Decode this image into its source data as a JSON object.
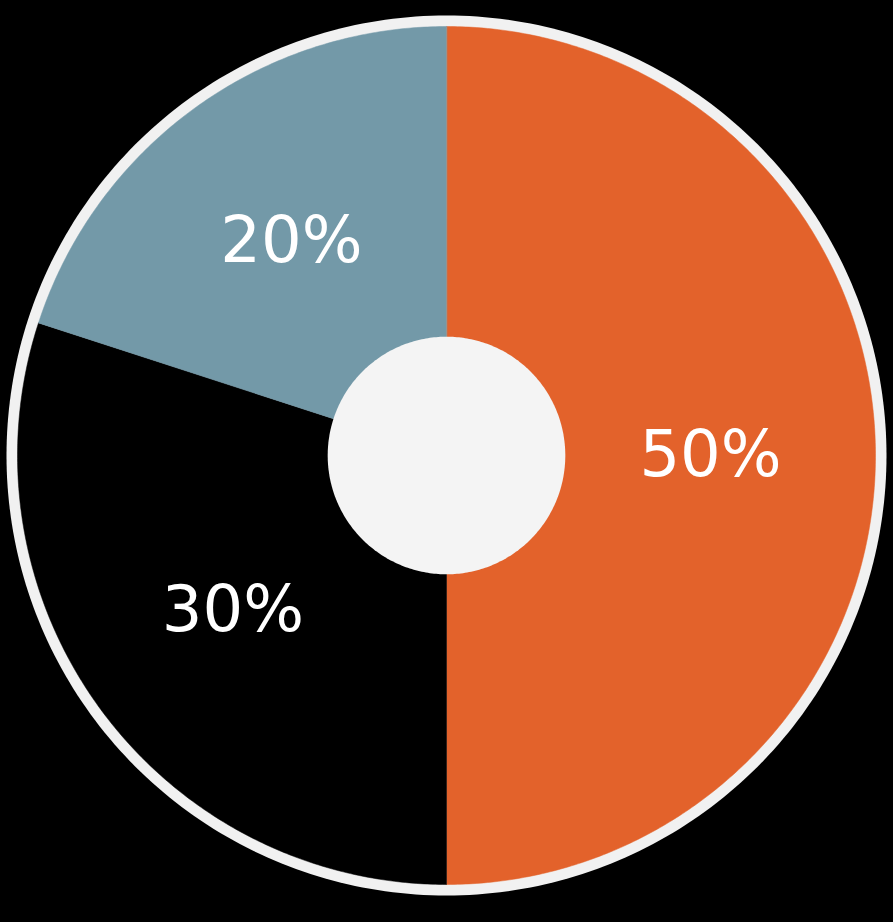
{
  "chart_data": {
    "type": "pie",
    "values": [
      50,
      30,
      20
    ],
    "value_labels": [
      "50%",
      "30%",
      "20%"
    ],
    "colors": [
      "#e3622b",
      "#000000",
      "#7399a8"
    ],
    "data_labels": true
  }
}
